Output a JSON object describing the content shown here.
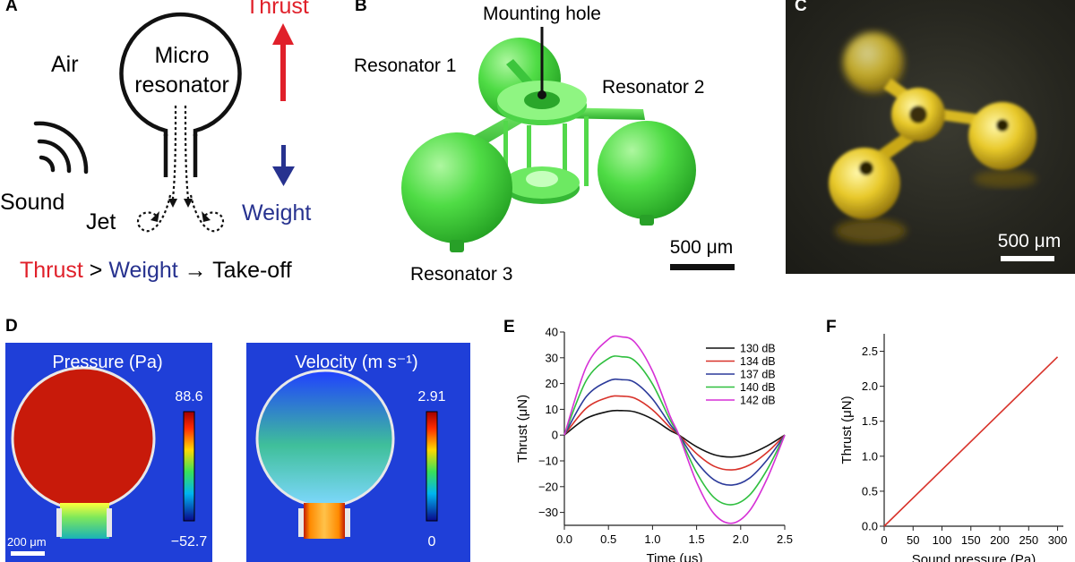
{
  "panels": {
    "A": {
      "letter": "A",
      "air": "Air",
      "sound": "Sound",
      "micro": "Micro",
      "resonator": "resonator",
      "jet": "Jet",
      "thrust": "Thrust",
      "weight": "Weight",
      "eq_thrust": "Thrust",
      "eq_gt": " > ",
      "eq_weight": "Weight",
      "eq_rest": " → Take-off",
      "colors": {
        "thrust": "#e0202a",
        "weight": "#27328f"
      }
    },
    "B": {
      "letter": "B",
      "mounting_hole": "Mounting hole",
      "resonator1": "Resonator 1",
      "resonator2": "Resonator 2",
      "resonator3": "Resonator 3",
      "scale": "500 μm"
    },
    "C": {
      "letter": "C",
      "scale": "500 μm"
    },
    "D": {
      "letter": "D",
      "pressure_title": "Pressure (Pa)",
      "pressure_max": "88.6",
      "pressure_min": "−52.7",
      "velocity_title": "Velocity (m s⁻¹)",
      "velocity_max": "2.91",
      "velocity_min": "0",
      "scale": "200 μm"
    },
    "E": {
      "letter": "E"
    },
    "F": {
      "letter": "F"
    }
  },
  "chart_data": [
    {
      "panel": "E",
      "type": "line",
      "xlabel": "Time (μs)",
      "ylabel": "Thrust (μN)",
      "xlim": [
        0,
        2.5
      ],
      "ylim": [
        -35,
        40
      ],
      "xticks": [
        "0.0",
        "0.5",
        "1.0",
        "1.5",
        "2.0",
        "2.5"
      ],
      "yticks": [
        "−30",
        "−20",
        "−10",
        "0",
        "10",
        "20",
        "30",
        "40"
      ],
      "legend": "top-right",
      "series": [
        {
          "name": "130 dB",
          "color": "#111111",
          "x": [
            0,
            0.25,
            0.5,
            0.65,
            0.8,
            1.0,
            1.2,
            1.3,
            1.5,
            1.7,
            1.9,
            2.1,
            2.3,
            2.5
          ],
          "y": [
            0,
            6.5,
            9.2,
            9.5,
            9.0,
            6.2,
            1.8,
            0,
            -4.5,
            -7.6,
            -8.5,
            -7.3,
            -4.2,
            0
          ]
        },
        {
          "name": "134 dB",
          "color": "#d8322a",
          "x": [
            0,
            0.25,
            0.5,
            0.65,
            0.8,
            1.0,
            1.2,
            1.3,
            1.5,
            1.7,
            1.9,
            2.1,
            2.3,
            2.5
          ],
          "y": [
            0,
            10.5,
            14.7,
            15.1,
            14.3,
            9.8,
            2.9,
            0,
            -7.2,
            -12.1,
            -13.5,
            -11.6,
            -6.7,
            0
          ]
        },
        {
          "name": "137 dB",
          "color": "#2b3a9a",
          "x": [
            0,
            0.25,
            0.5,
            0.65,
            0.8,
            1.0,
            1.2,
            1.3,
            1.5,
            1.7,
            1.9,
            2.1,
            2.3,
            2.5
          ],
          "y": [
            0,
            15.0,
            21.0,
            21.5,
            20.4,
            14.0,
            4.1,
            0,
            -10.4,
            -17.4,
            -19.4,
            -16.7,
            -9.6,
            0
          ]
        },
        {
          "name": "140 dB",
          "color": "#2fbf3f",
          "x": [
            0,
            0.25,
            0.5,
            0.65,
            0.8,
            1.0,
            1.2,
            1.3,
            1.5,
            1.7,
            1.9,
            2.1,
            2.3,
            2.5
          ],
          "y": [
            0,
            21.3,
            29.7,
            30.4,
            28.8,
            19.8,
            5.8,
            0,
            -14.5,
            -24.3,
            -27.0,
            -23.3,
            -13.4,
            0
          ]
        },
        {
          "name": "142 dB",
          "color": "#d630d6",
          "x": [
            0,
            0.25,
            0.5,
            0.65,
            0.8,
            1.0,
            1.2,
            1.3,
            1.5,
            1.7,
            1.9,
            2.1,
            2.3,
            2.5
          ],
          "y": [
            0,
            26.6,
            37.2,
            38.1,
            36.0,
            24.8,
            7.3,
            0,
            -18.3,
            -30.6,
            -34.2,
            -29.4,
            -16.9,
            0
          ]
        }
      ]
    },
    {
      "panel": "F",
      "type": "line",
      "xlabel": "Sound pressure (Pa)",
      "ylabel": "Thrust (μN)",
      "xlim": [
        0,
        310
      ],
      "ylim": [
        0,
        2.75
      ],
      "xticks": [
        "0",
        "50",
        "100",
        "150",
        "200",
        "250",
        "300"
      ],
      "yticks": [
        "0.0",
        "0.5",
        "1.0",
        "1.5",
        "2.0",
        "2.5"
      ],
      "series": [
        {
          "color": "#d8322a",
          "x": [
            0,
            300
          ],
          "y": [
            0,
            2.42
          ]
        }
      ]
    }
  ]
}
